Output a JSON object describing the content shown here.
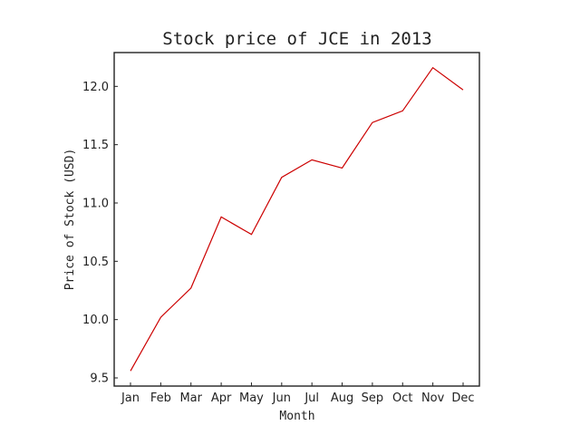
{
  "chart_data": {
    "type": "line",
    "title": "Stock price of JCE in 2013",
    "xlabel": "Month",
    "ylabel": "Price of Stock (USD)",
    "categories": [
      "Jan",
      "Feb",
      "Mar",
      "Apr",
      "May",
      "Jun",
      "Jul",
      "Aug",
      "Sep",
      "Oct",
      "Nov",
      "Dec"
    ],
    "series": [
      {
        "values": [
          9.56,
          10.02,
          10.27,
          10.88,
          10.73,
          11.22,
          11.37,
          11.3,
          11.69,
          11.79,
          12.16,
          11.97
        ],
        "color": "#cc0000"
      }
    ],
    "ylim": [
      9.43,
      12.29
    ],
    "yticks": [
      9.5,
      10.0,
      10.5,
      11.0,
      11.5,
      12.0
    ],
    "ytick_labels": [
      "9.5",
      "10.0",
      "10.5",
      "11.0",
      "11.5",
      "12.0"
    ],
    "grid": false,
    "legend": "none"
  }
}
